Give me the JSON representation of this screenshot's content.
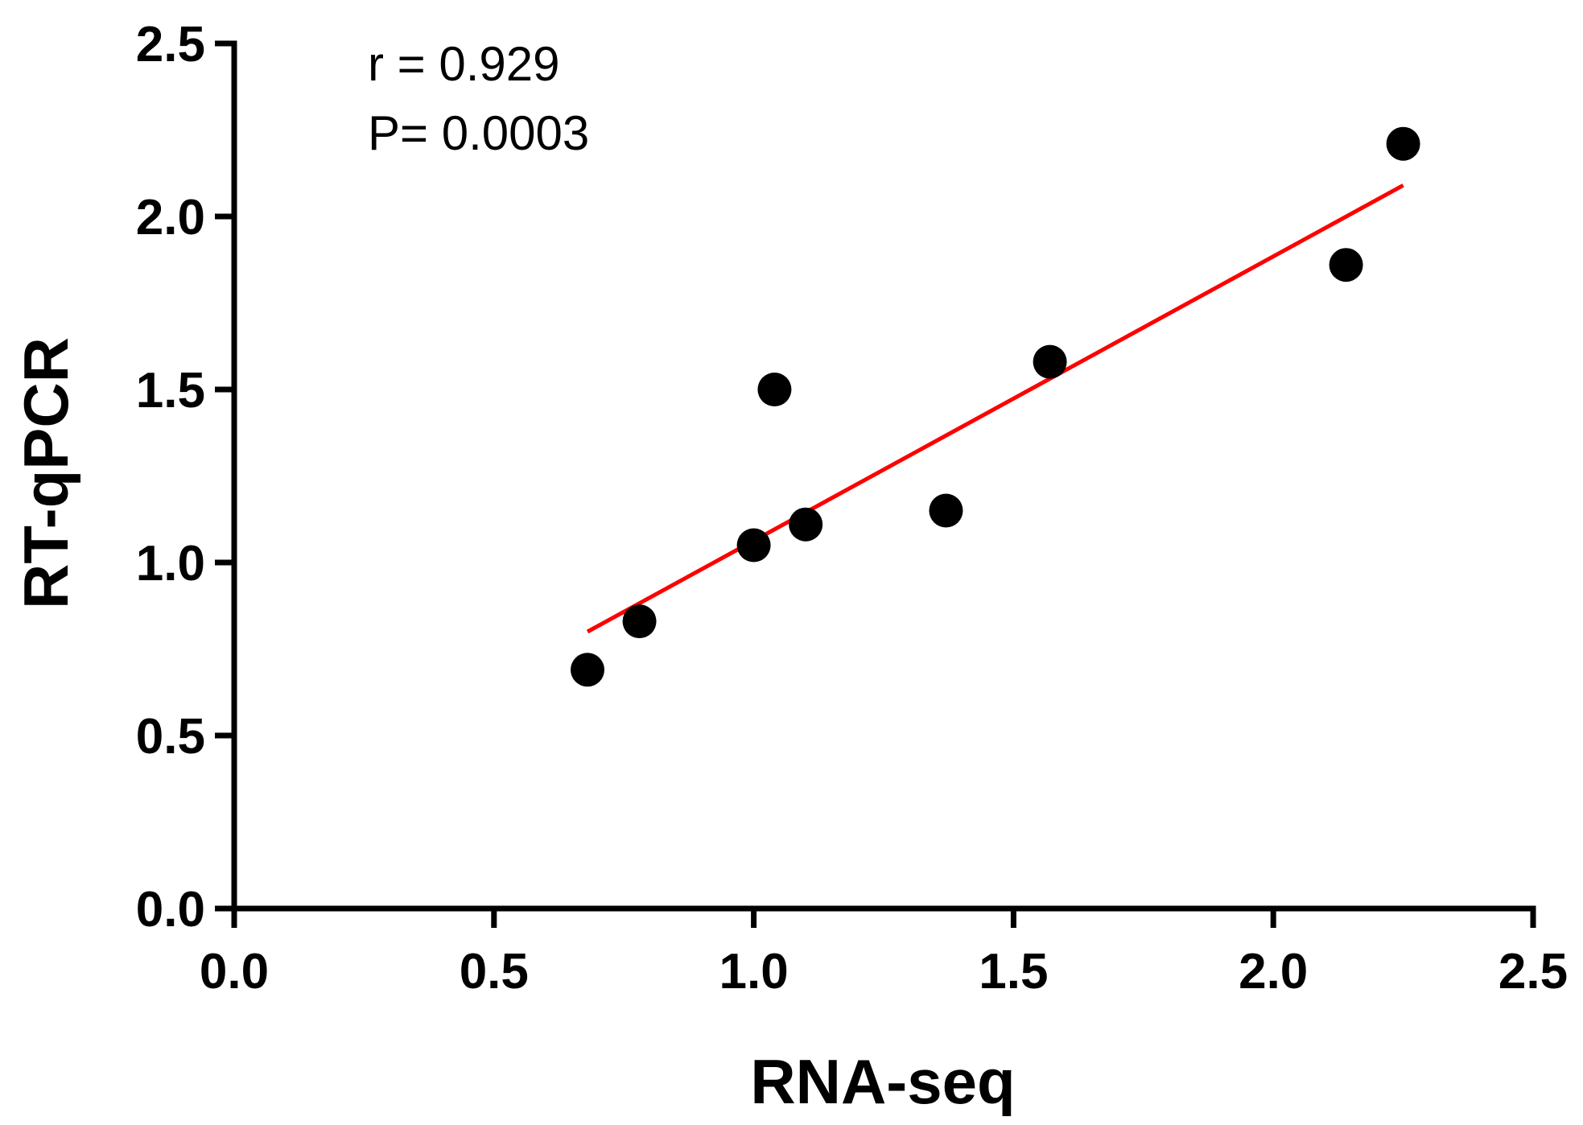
{
  "chart_data": {
    "type": "scatter",
    "xlabel": "RNA-seq",
    "ylabel": "RT-qPCR",
    "xlim": [
      0,
      2.5
    ],
    "ylim": [
      0,
      2.5
    ],
    "x_ticks": [
      "0.0",
      "0.5",
      "1.0",
      "1.5",
      "2.0",
      "2.5"
    ],
    "y_ticks": [
      "0.0",
      "0.5",
      "1.0",
      "1.5",
      "2.0",
      "2.5"
    ],
    "grid": false,
    "annotations": [
      "r = 0.929",
      "P= 0.0003"
    ],
    "series": [
      {
        "points": [
          {
            "x": 0.68,
            "y": 0.69
          },
          {
            "x": 0.78,
            "y": 0.83
          },
          {
            "x": 1.0,
            "y": 1.05
          },
          {
            "x": 1.04,
            "y": 1.5
          },
          {
            "x": 1.1,
            "y": 1.11
          },
          {
            "x": 1.37,
            "y": 1.15
          },
          {
            "x": 1.57,
            "y": 1.58
          },
          {
            "x": 2.14,
            "y": 1.86
          },
          {
            "x": 2.25,
            "y": 2.21
          }
        ],
        "color": "#000000"
      }
    ],
    "fit_line": {
      "x": [
        0.68,
        2.25
      ],
      "y": [
        0.8,
        2.09
      ],
      "color": "#ff0000"
    }
  }
}
